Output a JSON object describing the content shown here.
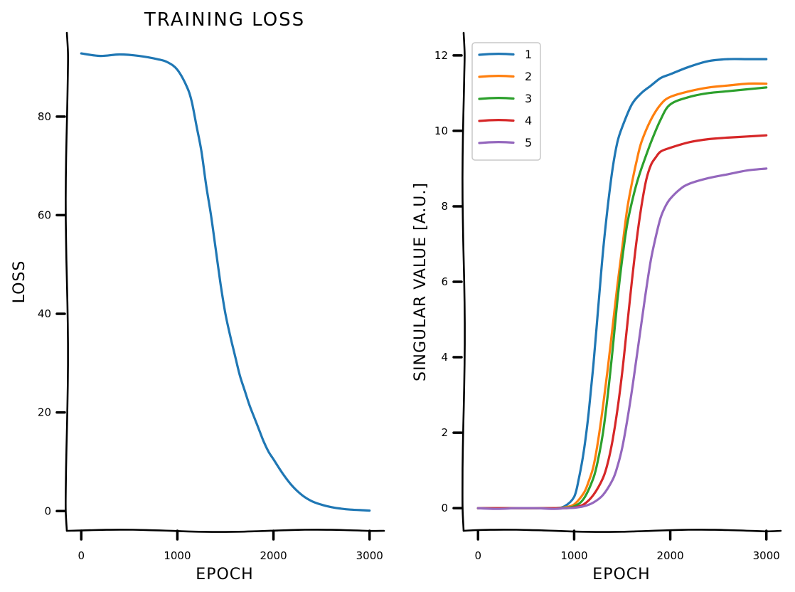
{
  "chart_data": [
    {
      "type": "line",
      "title": "TRAINING LOSS",
      "xlabel": "EPOCH",
      "ylabel": "LOSS",
      "xlim": [
        -150,
        3150
      ],
      "ylim": [
        -4,
        97
      ],
      "xticks": [
        "0",
        "1000",
        "2000",
        "3000"
      ],
      "yticks": [
        "0",
        "20",
        "40",
        "60",
        "80"
      ],
      "grid": false,
      "series": [
        {
          "name": "",
          "color": "#1f77b4",
          "x": [
            0,
            200,
            400,
            600,
            800,
            900,
            1000,
            1100,
            1150,
            1200,
            1250,
            1300,
            1350,
            1400,
            1450,
            1500,
            1550,
            1600,
            1650,
            1700,
            1750,
            1800,
            1850,
            1900,
            1950,
            2000,
            2100,
            2200,
            2300,
            2400,
            2500,
            2600,
            2700,
            2800,
            2900,
            3000
          ],
          "y": [
            92.8,
            92.3,
            92.6,
            92.3,
            91.6,
            91.0,
            89.5,
            86.0,
            83.0,
            78.0,
            73.0,
            66.0,
            60.0,
            53.0,
            46.0,
            40.0,
            35.5,
            31.5,
            27.5,
            24.5,
            21.5,
            19.0,
            16.5,
            14.0,
            12.0,
            10.5,
            7.5,
            5.0,
            3.2,
            2.0,
            1.3,
            0.8,
            0.5,
            0.3,
            0.2,
            0.1
          ]
        }
      ]
    },
    {
      "type": "line",
      "title": "",
      "xlabel": "EPOCH",
      "ylabel": "SINGULAR VALUE [A.U.]",
      "xlim": [
        -150,
        3150
      ],
      "ylim": [
        -0.6,
        12.6
      ],
      "xticks": [
        "0",
        "1000",
        "2000",
        "3000"
      ],
      "yticks": [
        "0",
        "2",
        "4",
        "6",
        "8",
        "10",
        "12"
      ],
      "grid": false,
      "legend": "top-left",
      "series": [
        {
          "name": "1",
          "color": "#1f77b4",
          "x": [
            0,
            200,
            400,
            600,
            800,
            900,
            1000,
            1050,
            1100,
            1150,
            1200,
            1250,
            1300,
            1350,
            1400,
            1450,
            1500,
            1600,
            1700,
            1800,
            1900,
            2000,
            2200,
            2400,
            2600,
            2800,
            3000
          ],
          "y": [
            0,
            0,
            0,
            0,
            0,
            0.05,
            0.3,
            0.8,
            1.5,
            2.5,
            3.8,
            5.3,
            6.8,
            8.0,
            9.0,
            9.7,
            10.1,
            10.7,
            11.0,
            11.2,
            11.4,
            11.5,
            11.7,
            11.85,
            11.9,
            11.9,
            11.9
          ]
        },
        {
          "name": "2",
          "color": "#ff7f0e",
          "x": [
            0,
            200,
            400,
            600,
            800,
            900,
            1000,
            1100,
            1150,
            1200,
            1250,
            1300,
            1350,
            1400,
            1450,
            1500,
            1550,
            1600,
            1650,
            1700,
            1800,
            1900,
            2000,
            2200,
            2400,
            2600,
            2800,
            3000
          ],
          "y": [
            0,
            0,
            0,
            0,
            0,
            0.02,
            0.1,
            0.4,
            0.7,
            1.1,
            1.8,
            2.7,
            3.7,
            4.8,
            5.9,
            6.9,
            7.9,
            8.6,
            9.2,
            9.7,
            10.3,
            10.7,
            10.9,
            11.05,
            11.15,
            11.2,
            11.25,
            11.25
          ]
        },
        {
          "name": "3",
          "color": "#2ca02c",
          "x": [
            0,
            200,
            400,
            600,
            800,
            900,
            1000,
            1100,
            1200,
            1250,
            1300,
            1350,
            1400,
            1450,
            1500,
            1550,
            1600,
            1650,
            1700,
            1800,
            1900,
            2000,
            2200,
            2400,
            2600,
            2800,
            3000
          ],
          "y": [
            0,
            0,
            0,
            0,
            0,
            0.01,
            0.05,
            0.25,
            0.8,
            1.3,
            2.0,
            3.0,
            4.2,
            5.5,
            6.6,
            7.5,
            8.1,
            8.6,
            9.0,
            9.7,
            10.3,
            10.7,
            10.9,
            11.0,
            11.05,
            11.1,
            11.15
          ]
        },
        {
          "name": "4",
          "color": "#d62728",
          "x": [
            0,
            200,
            400,
            600,
            800,
            900,
            1000,
            1100,
            1200,
            1300,
            1350,
            1400,
            1450,
            1500,
            1550,
            1600,
            1650,
            1700,
            1750,
            1800,
            1850,
            1900,
            2000,
            2200,
            2400,
            2600,
            2800,
            3000
          ],
          "y": [
            0,
            0,
            0,
            0,
            0,
            0,
            0.02,
            0.1,
            0.35,
            0.8,
            1.2,
            1.8,
            2.6,
            3.6,
            4.8,
            6.0,
            7.1,
            8.0,
            8.7,
            9.1,
            9.3,
            9.45,
            9.55,
            9.7,
            9.78,
            9.82,
            9.85,
            9.88
          ]
        },
        {
          "name": "5",
          "color": "#9467bd",
          "x": [
            0,
            200,
            400,
            600,
            800,
            900,
            1000,
            1100,
            1200,
            1300,
            1400,
            1450,
            1500,
            1550,
            1600,
            1650,
            1700,
            1750,
            1800,
            1850,
            1900,
            1950,
            2000,
            2100,
            2200,
            2400,
            2600,
            2800,
            3000
          ],
          "y": [
            0,
            -0.02,
            0,
            0,
            -0.02,
            0,
            0.01,
            0.05,
            0.15,
            0.35,
            0.75,
            1.1,
            1.6,
            2.3,
            3.1,
            4.0,
            4.9,
            5.8,
            6.6,
            7.2,
            7.7,
            8.0,
            8.2,
            8.45,
            8.6,
            8.75,
            8.85,
            8.95,
            9.0
          ]
        }
      ]
    }
  ]
}
